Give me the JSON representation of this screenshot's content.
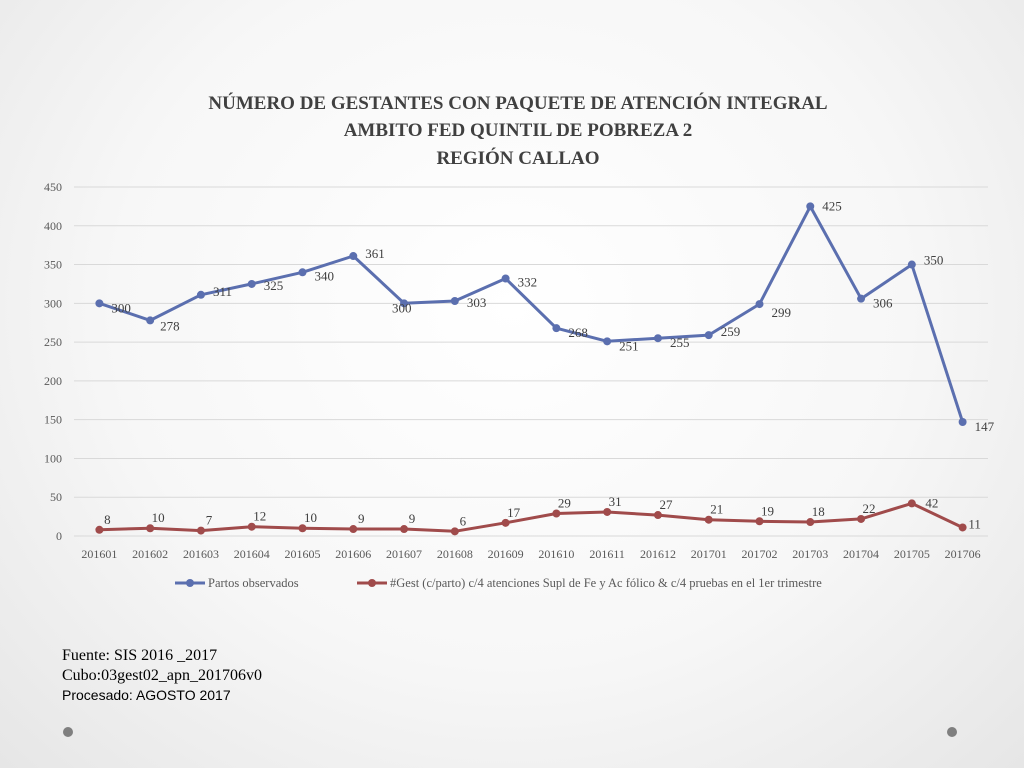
{
  "colors": {
    "series_blue": "#5B6FAF",
    "series_red": "#A04B4B",
    "dot": "#7F7F7F"
  },
  "chart_data": {
    "type": "line",
    "title_lines": [
      "NÚMERO DE GESTANTES CON PAQUETE DE ATENCIÓN INTEGRAL",
      "AMBITO FED QUINTIL DE POBREZA 2",
      "REGIÓN CALLAO"
    ],
    "categories": [
      "201601",
      "201602",
      "201603",
      "201604",
      "201605",
      "201606",
      "201607",
      "201608",
      "201609",
      "201610",
      "201611",
      "201612",
      "201701",
      "201702",
      "201703",
      "201704",
      "201705",
      "201706"
    ],
    "y_ticks": [
      0,
      50,
      100,
      150,
      200,
      250,
      300,
      350,
      400,
      450
    ],
    "ylim": [
      0,
      450
    ],
    "grid": true,
    "legend_position": "bottom",
    "series": [
      {
        "name": "Partos observados",
        "color": "#5B6FAF",
        "values": [
          300,
          278,
          311,
          325,
          340,
          361,
          300,
          303,
          332,
          268,
          251,
          255,
          259,
          299,
          425,
          306,
          350,
          147
        ]
      },
      {
        "name": "#Gest (c/parto) c/4 atenciones Supl de Fe y Ac fólico & c/4 pruebas en el 1er trimestre",
        "color": "#A04B4B",
        "values": [
          8,
          10,
          7,
          12,
          10,
          9,
          9,
          6,
          17,
          29,
          31,
          27,
          21,
          19,
          18,
          22,
          42,
          11
        ]
      }
    ]
  },
  "source": {
    "line1": "Fuente: SIS 2016 _2017",
    "line2": "Cubo:03gest02_apn_201706v0",
    "line3": "Procesado: AGOSTO 2017"
  }
}
